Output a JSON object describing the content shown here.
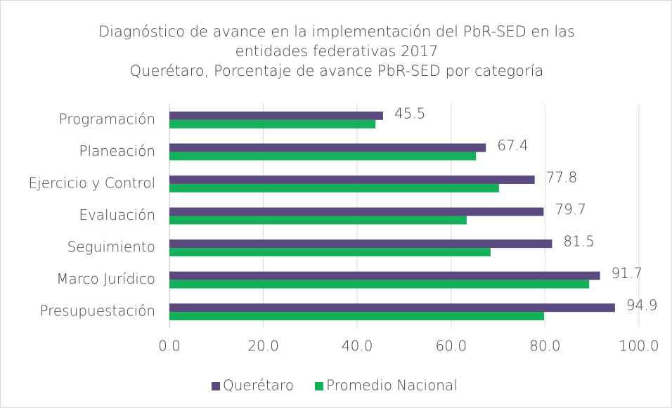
{
  "chart_data": {
    "type": "hbar",
    "title": "Diagnóstico de avance en la implementación del PbR-SED en las entidades federativas 2017",
    "subtitle": "Querétaro, Porcentaje de avance PbR-SED por categoría",
    "categories": [
      "Programación",
      "Planeación",
      "Ejercicio y Control",
      "Evaluación",
      "Seguimiento",
      "Marco Jurídico",
      "Presupuestación"
    ],
    "series": [
      {
        "name": "Querétaro",
        "color": "#5b4a7f",
        "values": [
          45.5,
          67.4,
          77.8,
          79.7,
          81.5,
          91.7,
          94.9
        ]
      },
      {
        "name": "Promedio Nacional",
        "color": "#14b15a",
        "values": [
          43.9,
          65.3,
          70.2,
          63.3,
          68.4,
          89.4,
          79.8
        ]
      }
    ],
    "xlim": [
      0,
      100
    ],
    "xticks": [
      {
        "value": 0,
        "label": "0.0"
      },
      {
        "value": 20,
        "label": "20.0"
      },
      {
        "value": 40,
        "label": "40.0"
      },
      {
        "value": 60,
        "label": "60.0"
      },
      {
        "value": 80,
        "label": "80.0"
      },
      {
        "value": 100,
        "label": "100.0"
      }
    ],
    "grid": true,
    "legend": "bottom"
  }
}
